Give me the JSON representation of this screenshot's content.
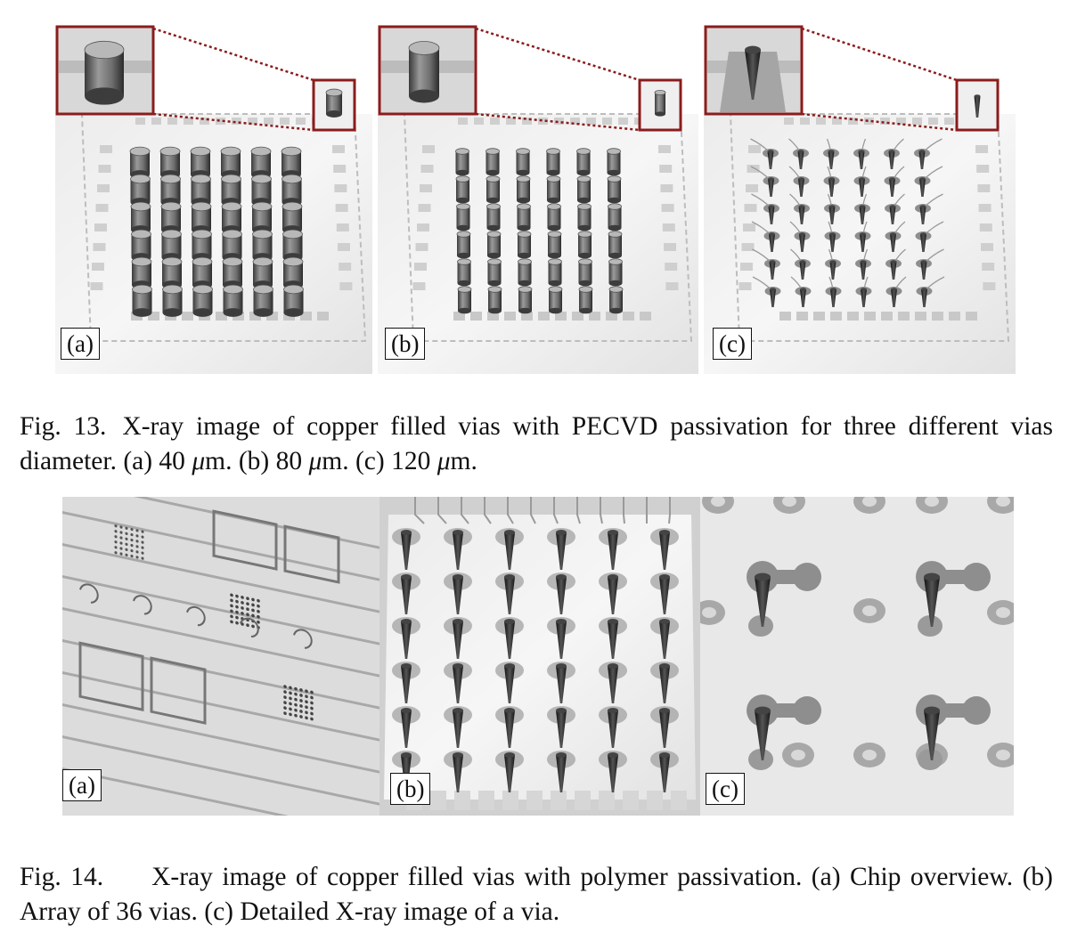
{
  "figure13": {
    "panel_labels": [
      "(a)",
      "(b)",
      "(c)"
    ],
    "caption": {
      "number": "Fig. 13.",
      "text_1": "X-ray image of copper filled vias with PECVD passivation for three different vias diameter. (a) 40 ",
      "mu_1": "μ",
      "text_2": "m. (b) 80 ",
      "mu_2": "μ",
      "text_3": "m. (c) 120 ",
      "mu_3": "μ",
      "text_4": "m."
    }
  },
  "figure14": {
    "panel_labels": [
      "(a)",
      "(b)",
      "(c)"
    ],
    "caption": {
      "number": "Fig. 14.",
      "text": "X-ray image of copper filled vias with polymer passivation. (a) Chip overview. (b) Array of 36 vias. (c) Detailed X-ray image of a via."
    }
  },
  "colors": {
    "inset_border": "#8b1c1c",
    "label_border": "#111111",
    "text": "#111111"
  }
}
